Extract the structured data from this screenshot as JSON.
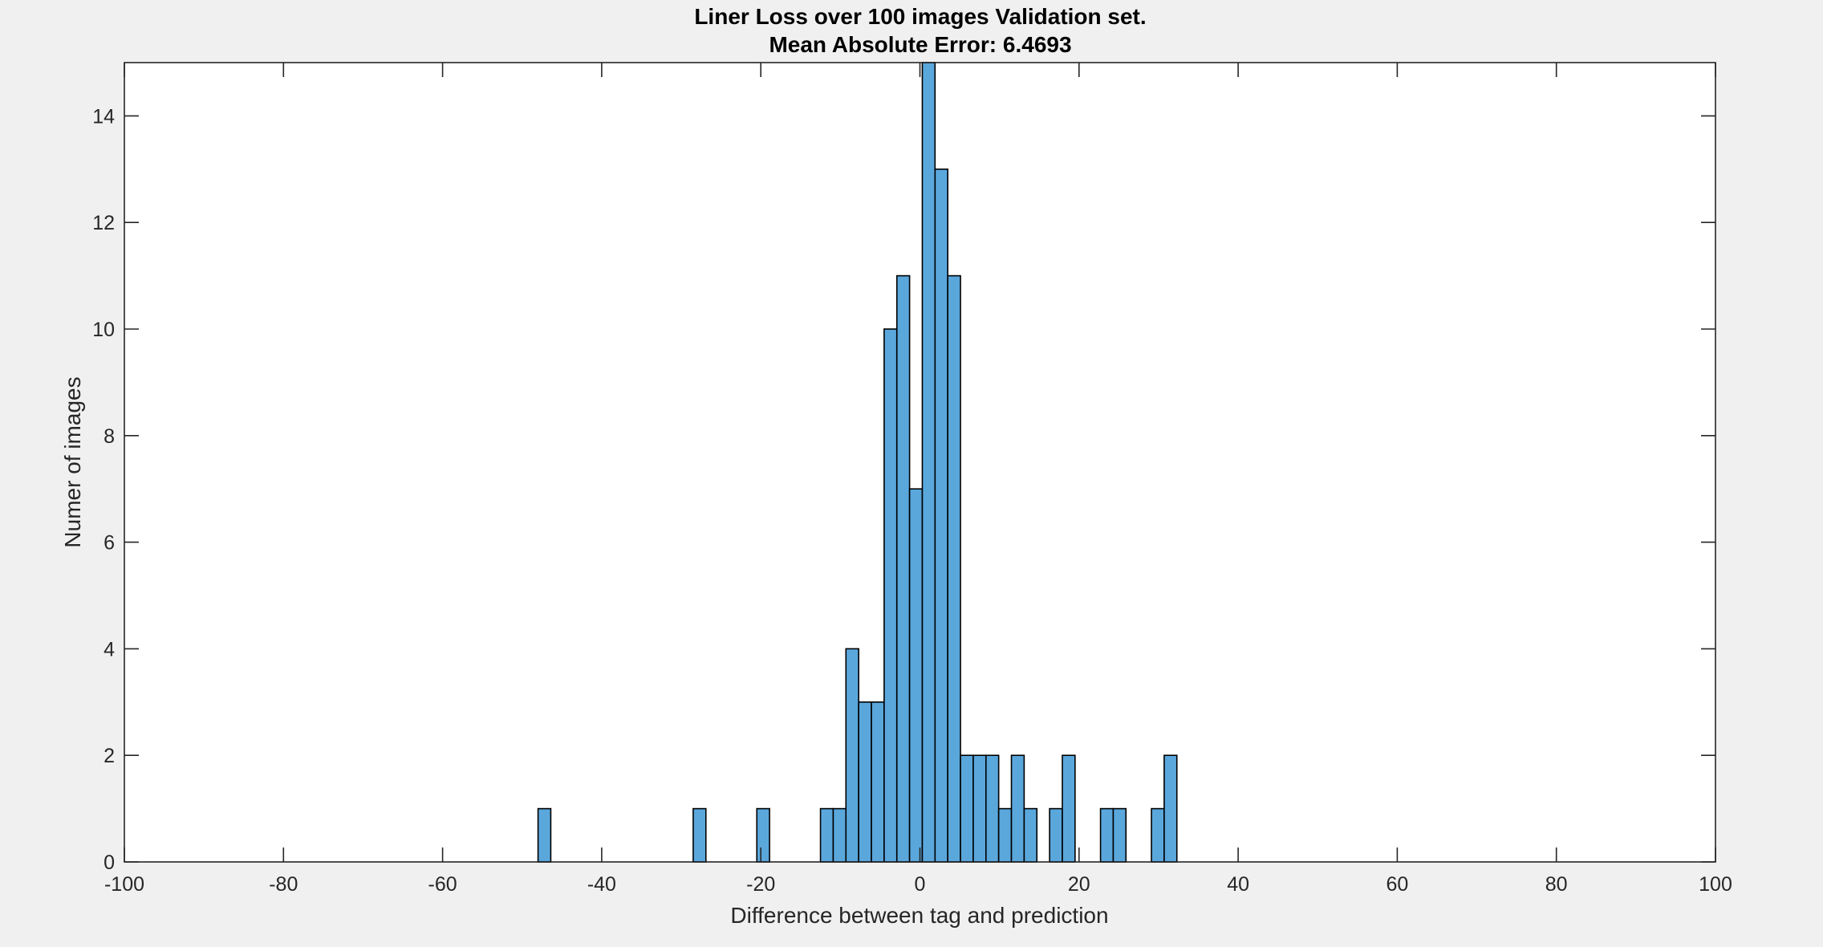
{
  "chart_data": {
    "type": "bar",
    "title": "Liner Loss over 100 images Validation set.",
    "subtitle": "Mean Absolute Error: 6.4693",
    "xlabel": "Difference between tag and prediction",
    "ylabel": "Numer of images",
    "xlim": [
      -100,
      100
    ],
    "ylim": [
      0,
      15
    ],
    "x_ticks": [
      -100,
      -80,
      -60,
      -40,
      -20,
      0,
      20,
      40,
      60,
      80,
      100
    ],
    "y_ticks": [
      0,
      2,
      4,
      6,
      8,
      10,
      12,
      14
    ],
    "bin_width": 1.6,
    "grid": false,
    "bar_color": "#5aa7dc",
    "edge_color": "#000000",
    "bins": [
      {
        "start": -48.0,
        "count": 1
      },
      {
        "start": -46.4,
        "count": 0
      },
      {
        "start": -44.8,
        "count": 0
      },
      {
        "start": -43.2,
        "count": 0
      },
      {
        "start": -41.6,
        "count": 0
      },
      {
        "start": -40.0,
        "count": 0
      },
      {
        "start": -38.4,
        "count": 0
      },
      {
        "start": -36.8,
        "count": 0
      },
      {
        "start": -35.2,
        "count": 0
      },
      {
        "start": -33.6,
        "count": 0
      },
      {
        "start": -32.0,
        "count": 0
      },
      {
        "start": -30.4,
        "count": 0
      },
      {
        "start": -28.5,
        "count": 1
      },
      {
        "start": -26.9,
        "count": 0
      },
      {
        "start": -25.3,
        "count": 0
      },
      {
        "start": -23.7,
        "count": 0
      },
      {
        "start": -22.1,
        "count": 0
      },
      {
        "start": -20.5,
        "count": 1
      },
      {
        "start": -18.9,
        "count": 0
      },
      {
        "start": -17.3,
        "count": 0
      },
      {
        "start": -15.7,
        "count": 0
      },
      {
        "start": -14.1,
        "count": 0
      },
      {
        "start": -12.5,
        "count": 1
      },
      {
        "start": -10.9,
        "count": 1
      },
      {
        "start": -9.3,
        "count": 4
      },
      {
        "start": -7.7,
        "count": 3
      },
      {
        "start": -6.1,
        "count": 3
      },
      {
        "start": -4.5,
        "count": 10
      },
      {
        "start": -2.9,
        "count": 11
      },
      {
        "start": -1.3,
        "count": 7
      },
      {
        "start": 0.3,
        "count": 15
      },
      {
        "start": 1.9,
        "count": 13
      },
      {
        "start": 3.5,
        "count": 11
      },
      {
        "start": 5.1,
        "count": 2
      },
      {
        "start": 6.7,
        "count": 2
      },
      {
        "start": 8.3,
        "count": 2
      },
      {
        "start": 9.9,
        "count": 1
      },
      {
        "start": 11.5,
        "count": 2
      },
      {
        "start": 13.1,
        "count": 1
      },
      {
        "start": 14.7,
        "count": 0
      },
      {
        "start": 16.3,
        "count": 1
      },
      {
        "start": 17.9,
        "count": 2
      },
      {
        "start": 19.5,
        "count": 0
      },
      {
        "start": 21.1,
        "count": 0
      },
      {
        "start": 22.7,
        "count": 1
      },
      {
        "start": 24.3,
        "count": 1
      },
      {
        "start": 25.9,
        "count": 0
      },
      {
        "start": 27.5,
        "count": 0
      },
      {
        "start": 29.1,
        "count": 1
      },
      {
        "start": 30.7,
        "count": 2
      }
    ]
  }
}
